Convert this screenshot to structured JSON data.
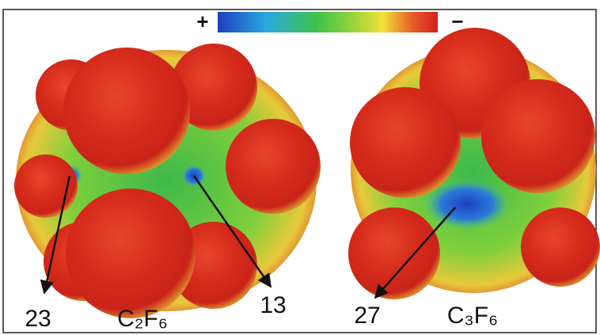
{
  "colorbar": {
    "positive": "+",
    "negative": "−"
  },
  "molecules": [
    {
      "formula": "C₂F₆",
      "sites": [
        "23",
        "13"
      ]
    },
    {
      "formula": "C₃F₆",
      "sites": [
        "27"
      ]
    }
  ]
}
